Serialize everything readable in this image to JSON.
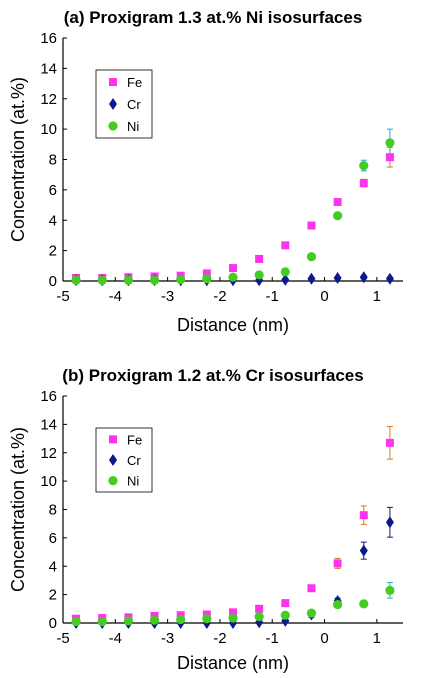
{
  "colors": {
    "fe": "#ff33ee",
    "cr": "#0a1a8c",
    "ni": "#44cc22",
    "err_fe": "#e07a1a",
    "err_cr": "#1a1a6a",
    "err_ni": "#22aacc"
  },
  "chart_data": [
    {
      "type": "scatter",
      "title": "(a) Proxigram 1.3 at.% Ni isosurfaces",
      "xlabel": "Distance (nm)",
      "ylabel": "Concentration (at.%)",
      "xlim": [
        -5,
        1.5
      ],
      "ylim": [
        0,
        16
      ],
      "xticks": [
        -5,
        -4,
        -3,
        -2,
        -1,
        0,
        1
      ],
      "yticks": [
        0,
        2,
        4,
        6,
        8,
        10,
        12,
        14,
        16
      ],
      "legend_position": "top-left",
      "x": [
        -4.75,
        -4.25,
        -3.75,
        -3.25,
        -2.75,
        -2.25,
        -1.75,
        -1.25,
        -0.75,
        -0.25,
        0.25,
        0.75,
        1.25
      ],
      "series": [
        {
          "name": "Fe",
          "marker": "square",
          "values": [
            0.2,
            0.2,
            0.25,
            0.3,
            0.35,
            0.5,
            0.85,
            1.45,
            2.35,
            3.65,
            5.2,
            6.45,
            8.15
          ],
          "err": [
            0,
            0,
            0,
            0,
            0,
            0,
            0,
            0,
            0,
            0,
            0,
            0.25,
            0.65
          ]
        },
        {
          "name": "Cr",
          "marker": "diamond",
          "values": [
            0.05,
            0.05,
            0.05,
            0.05,
            0.05,
            0.05,
            0.05,
            0.05,
            0.08,
            0.15,
            0.2,
            0.25,
            0.15
          ],
          "err": [
            0,
            0,
            0,
            0,
            0,
            0,
            0,
            0,
            0,
            0,
            0,
            0.1,
            0.1
          ]
        },
        {
          "name": "Ni",
          "marker": "circle",
          "values": [
            0.05,
            0.05,
            0.05,
            0.05,
            0.1,
            0.15,
            0.25,
            0.4,
            0.6,
            1.6,
            4.3,
            7.6,
            9.1
          ],
          "err": [
            0,
            0,
            0,
            0,
            0,
            0,
            0,
            0,
            0,
            0,
            0,
            0.35,
            0.9
          ]
        }
      ]
    },
    {
      "type": "scatter",
      "title": "(b) Proxigram 1.2 at.% Cr isosurfaces",
      "xlabel": "Distance (nm)",
      "ylabel": "Concentration (at.%)",
      "xlim": [
        -5,
        1.5
      ],
      "ylim": [
        0,
        16
      ],
      "xticks": [
        -5,
        -4,
        -3,
        -2,
        -1,
        0,
        1
      ],
      "yticks": [
        0,
        2,
        4,
        6,
        8,
        10,
        12,
        14,
        16
      ],
      "legend_position": "top-left",
      "x": [
        -4.75,
        -4.25,
        -3.75,
        -3.25,
        -2.75,
        -2.25,
        -1.75,
        -1.25,
        -0.75,
        -0.25,
        0.25,
        0.75,
        1.25
      ],
      "series": [
        {
          "name": "Fe",
          "marker": "square",
          "values": [
            0.3,
            0.35,
            0.4,
            0.5,
            0.55,
            0.6,
            0.75,
            1.0,
            1.4,
            2.45,
            4.2,
            7.6,
            12.7
          ],
          "err": [
            0,
            0,
            0,
            0,
            0,
            0,
            0,
            0,
            0,
            0,
            0.35,
            0.65,
            1.15
          ]
        },
        {
          "name": "Cr",
          "marker": "diamond",
          "values": [
            0.0,
            0.0,
            0.0,
            0.0,
            0.0,
            0.0,
            0.0,
            0.05,
            0.15,
            0.6,
            1.55,
            5.1,
            7.1
          ],
          "err": [
            0,
            0,
            0,
            0,
            0,
            0,
            0,
            0,
            0,
            0.2,
            0.2,
            0.6,
            1.05
          ]
        },
        {
          "name": "Ni",
          "marker": "circle",
          "values": [
            0.1,
            0.1,
            0.15,
            0.2,
            0.25,
            0.3,
            0.35,
            0.45,
            0.55,
            0.7,
            1.3,
            1.35,
            2.3
          ],
          "err": [
            0,
            0,
            0,
            0,
            0,
            0,
            0,
            0,
            0,
            0,
            0,
            0.2,
            0.55
          ]
        }
      ]
    }
  ]
}
